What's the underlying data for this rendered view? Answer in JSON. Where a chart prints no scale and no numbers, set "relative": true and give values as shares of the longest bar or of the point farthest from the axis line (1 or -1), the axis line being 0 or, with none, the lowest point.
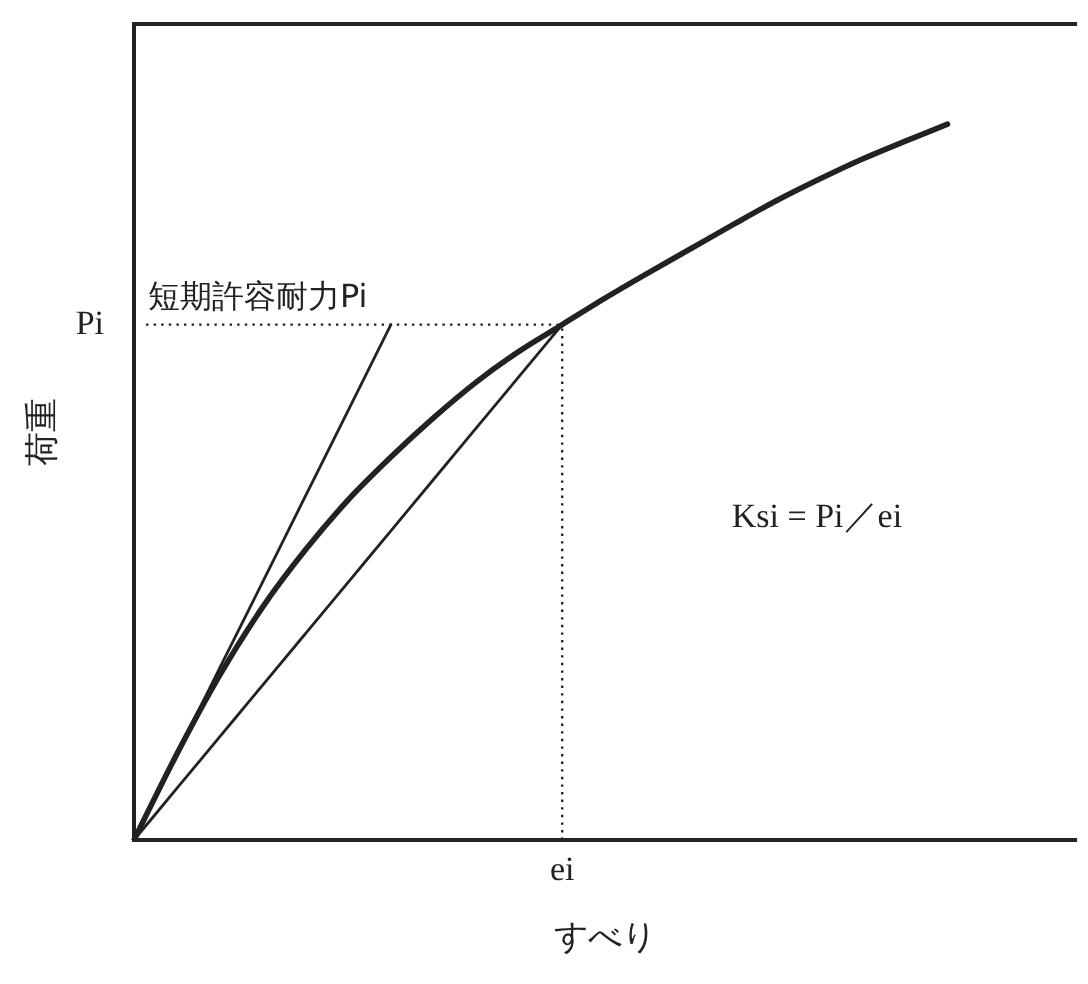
{
  "chart_data": {
    "type": "line",
    "relative": true,
    "xlabel": "すべり",
    "ylabel": "荷重",
    "marker": "none",
    "categories": [
      null,
      null,
      null,
      null,
      null,
      null,
      null,
      null,
      null,
      null,
      null,
      null,
      null,
      null,
      null,
      null,
      null,
      null,
      null,
      null,
      null,
      null,
      null
    ],
    "series": [
      {
        "color": "#222222",
        "values": [
          0,
          0.12,
          0.23,
          0.325,
          0.405,
          0.475,
          0.535,
          0.59,
          0.64,
          0.683,
          0.72,
          0.757,
          0.792,
          0.826,
          0.86,
          0.893,
          0.923,
          0.951,
          0.976,
          1,
          null,
          null,
          null
        ]
      },
      {
        "color": "#222222",
        "values": [
          0,
          0.12,
          0.24,
          0.36,
          0.48,
          0.6,
          0.72,
          null,
          null,
          null,
          null,
          null,
          null,
          null,
          null,
          null,
          null,
          null,
          null,
          null,
          null,
          null,
          null
        ]
      },
      {
        "color": "#222222",
        "values": [
          0,
          0.072,
          0.144,
          0.216,
          0.288,
          0.36,
          0.432,
          0.504,
          0.576,
          0.648,
          0.72,
          null,
          null,
          null,
          null,
          null,
          null,
          null,
          null,
          null,
          null,
          null,
          null
        ]
      }
    ],
    "ref_lines": [
      {
        "axis": "y",
        "value": 0.72,
        "label": "Pi",
        "color": "#222222",
        "line_style": "dotted"
      },
      {
        "axis": "x",
        "value": "ei",
        "color": "#222222",
        "line_style": "dotted"
      }
    ],
    "annotations": [
      {
        "text": "短期許容耐力Pi",
        "y": 0.72
      },
      "Ksi = Pi／ei"
    ]
  }
}
